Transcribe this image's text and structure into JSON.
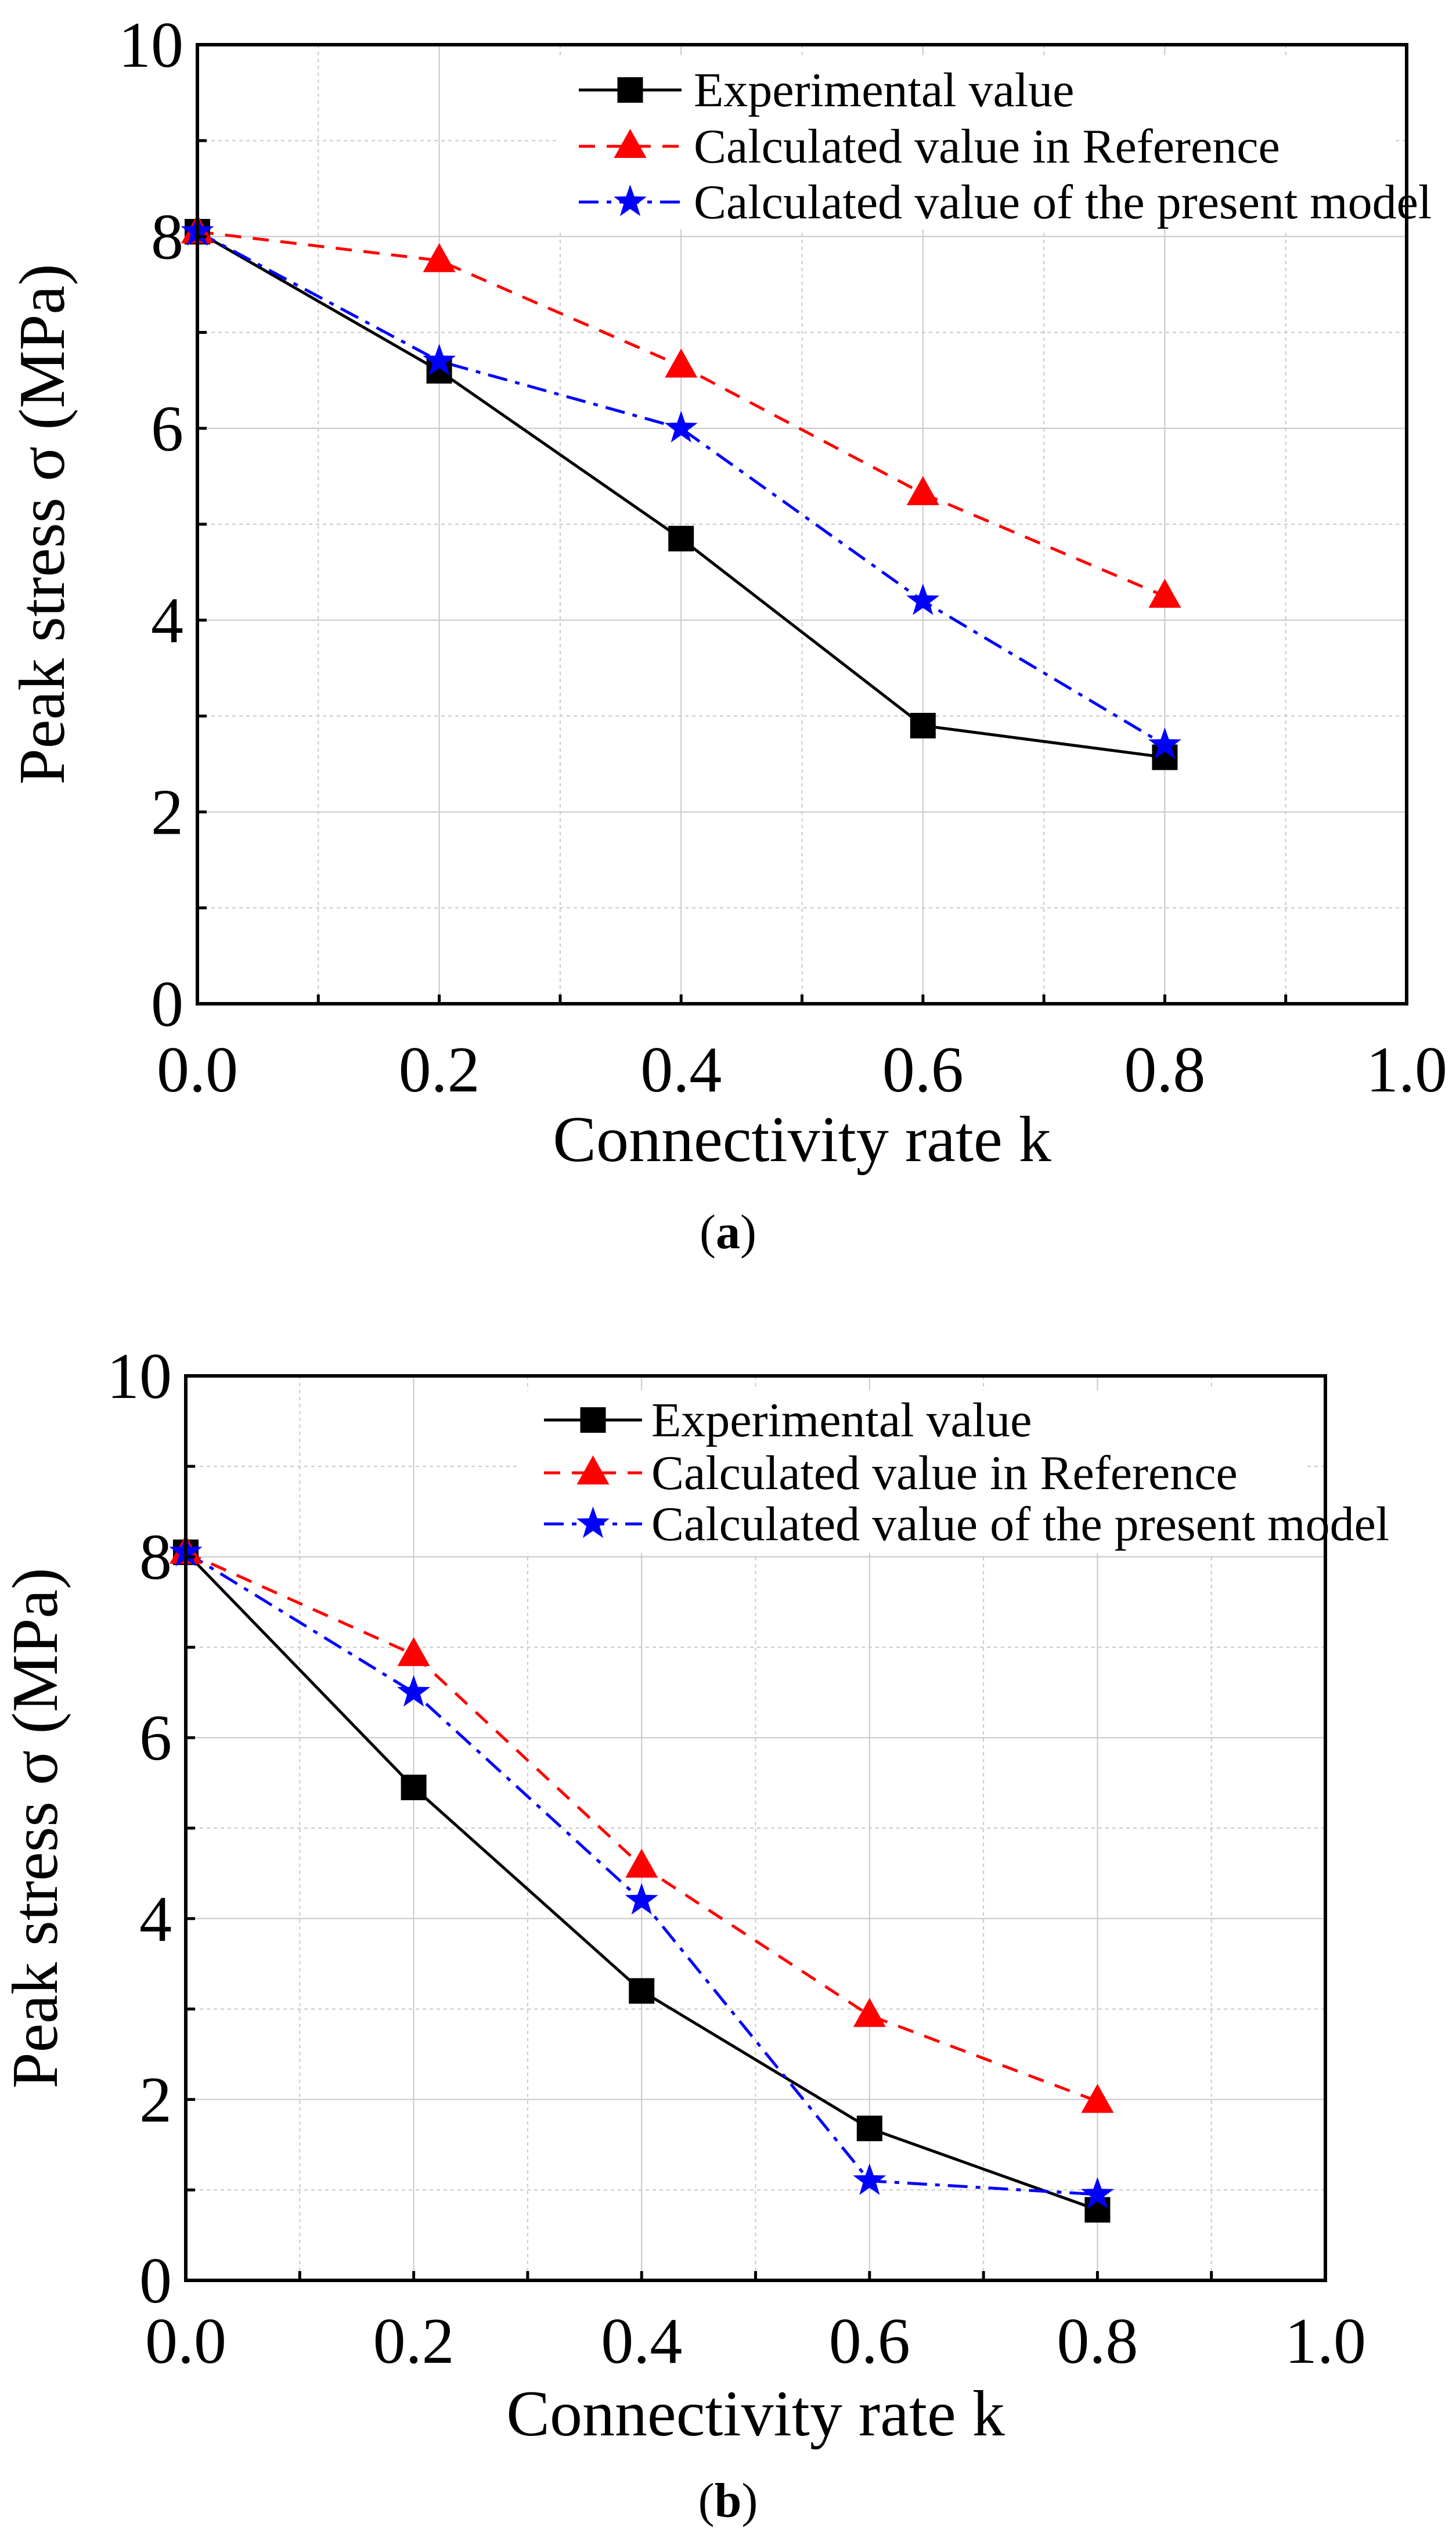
{
  "chart_data": [
    {
      "type": "line",
      "panel": "a",
      "caption_open": "(",
      "caption_letter": "a",
      "caption_close": ")",
      "xlabel": "Connectivity rate k",
      "ylabel": "Peak stress σ (MPa)",
      "xlim": [
        0,
        1.0
      ],
      "ylim": [
        0,
        10
      ],
      "xticks": [
        "0.0",
        "0.2",
        "0.4",
        "0.6",
        "0.8",
        "1.0"
      ],
      "yticks": [
        "0",
        "2",
        "4",
        "6",
        "8",
        "10"
      ],
      "grid": true,
      "legend_position": "top-right",
      "x": [
        0,
        0.2,
        0.4,
        0.6,
        0.8
      ],
      "series": [
        {
          "name": "Experimental value",
          "color": "#000000",
          "marker": "square",
          "dash": "solid",
          "values": [
            8.05,
            6.6,
            4.85,
            2.9,
            2.57
          ]
        },
        {
          "name": "Calculated value in Reference",
          "color": "#ff0000",
          "marker": "triangle",
          "dash": "dash",
          "values": [
            8.05,
            7.75,
            6.65,
            5.32,
            4.25
          ]
        },
        {
          "name": "Calculated value of the present model",
          "color": "#0000ff",
          "marker": "star",
          "dash": "dashdot",
          "values": [
            8.05,
            6.7,
            6.0,
            4.2,
            2.7
          ]
        }
      ]
    },
    {
      "type": "line",
      "panel": "b",
      "caption_open": "(",
      "caption_letter": "b",
      "caption_close": ")",
      "xlabel": "Connectivity rate k",
      "ylabel": "Peak stress σ (MPa)",
      "xlim": [
        0,
        1.0
      ],
      "ylim": [
        0,
        10
      ],
      "xticks": [
        "0.0",
        "0.2",
        "0.4",
        "0.6",
        "0.8",
        "1.0"
      ],
      "yticks": [
        "0",
        "2",
        "4",
        "6",
        "8",
        "10"
      ],
      "grid": true,
      "legend_position": "top-right",
      "x": [
        0,
        0.2,
        0.4,
        0.6,
        0.8
      ],
      "series": [
        {
          "name": "Experimental value",
          "color": "#000000",
          "marker": "square",
          "dash": "solid",
          "values": [
            8.05,
            5.45,
            3.2,
            1.68,
            0.78
          ]
        },
        {
          "name": "Calculated value in Reference",
          "color": "#ff0000",
          "marker": "triangle",
          "dash": "dash",
          "values": [
            8.05,
            6.92,
            4.58,
            2.93,
            1.98
          ]
        },
        {
          "name": "Calculated value of the present model",
          "color": "#0000ff",
          "marker": "star",
          "dash": "dashdot",
          "values": [
            8.05,
            6.5,
            4.2,
            1.1,
            0.95
          ]
        }
      ]
    }
  ]
}
